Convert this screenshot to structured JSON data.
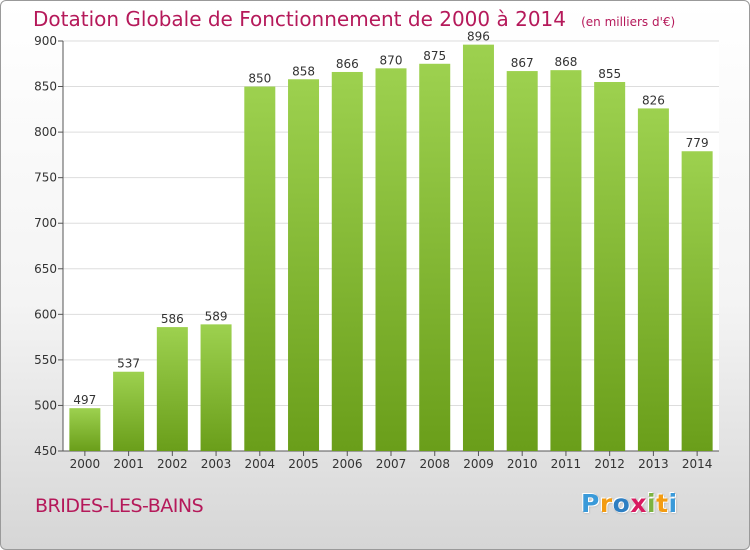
{
  "chart_data": {
    "type": "bar",
    "title": "Dotation Globale de Fonctionnement de 2000 à 2014",
    "unit_label": "(en milliers d'€)",
    "categories": [
      "2000",
      "2001",
      "2002",
      "2003",
      "2004",
      "2005",
      "2006",
      "2007",
      "2008",
      "2009",
      "2010",
      "2011",
      "2012",
      "2013",
      "2014"
    ],
    "values": [
      497,
      537,
      586,
      589,
      850,
      858,
      866,
      870,
      875,
      896,
      867,
      868,
      855,
      826,
      779
    ],
    "y_ticks": [
      450,
      500,
      550,
      600,
      650,
      700,
      750,
      800,
      850,
      900
    ],
    "ylim": [
      450,
      900
    ],
    "grid": true,
    "bar_color": "#8cc63f"
  },
  "footer": {
    "commune": "BRIDES-LES-BAINS",
    "logo_text": "Proxiti",
    "logo_colors": [
      "#3a9ad9",
      "#f39c12",
      "#2e7fc2",
      "#d81b60",
      "#7cb342",
      "#f39c12",
      "#3a9ad9"
    ]
  },
  "colors": {
    "title": "#b5195a",
    "grid": "#dddddd",
    "axis_text": "#333333"
  }
}
